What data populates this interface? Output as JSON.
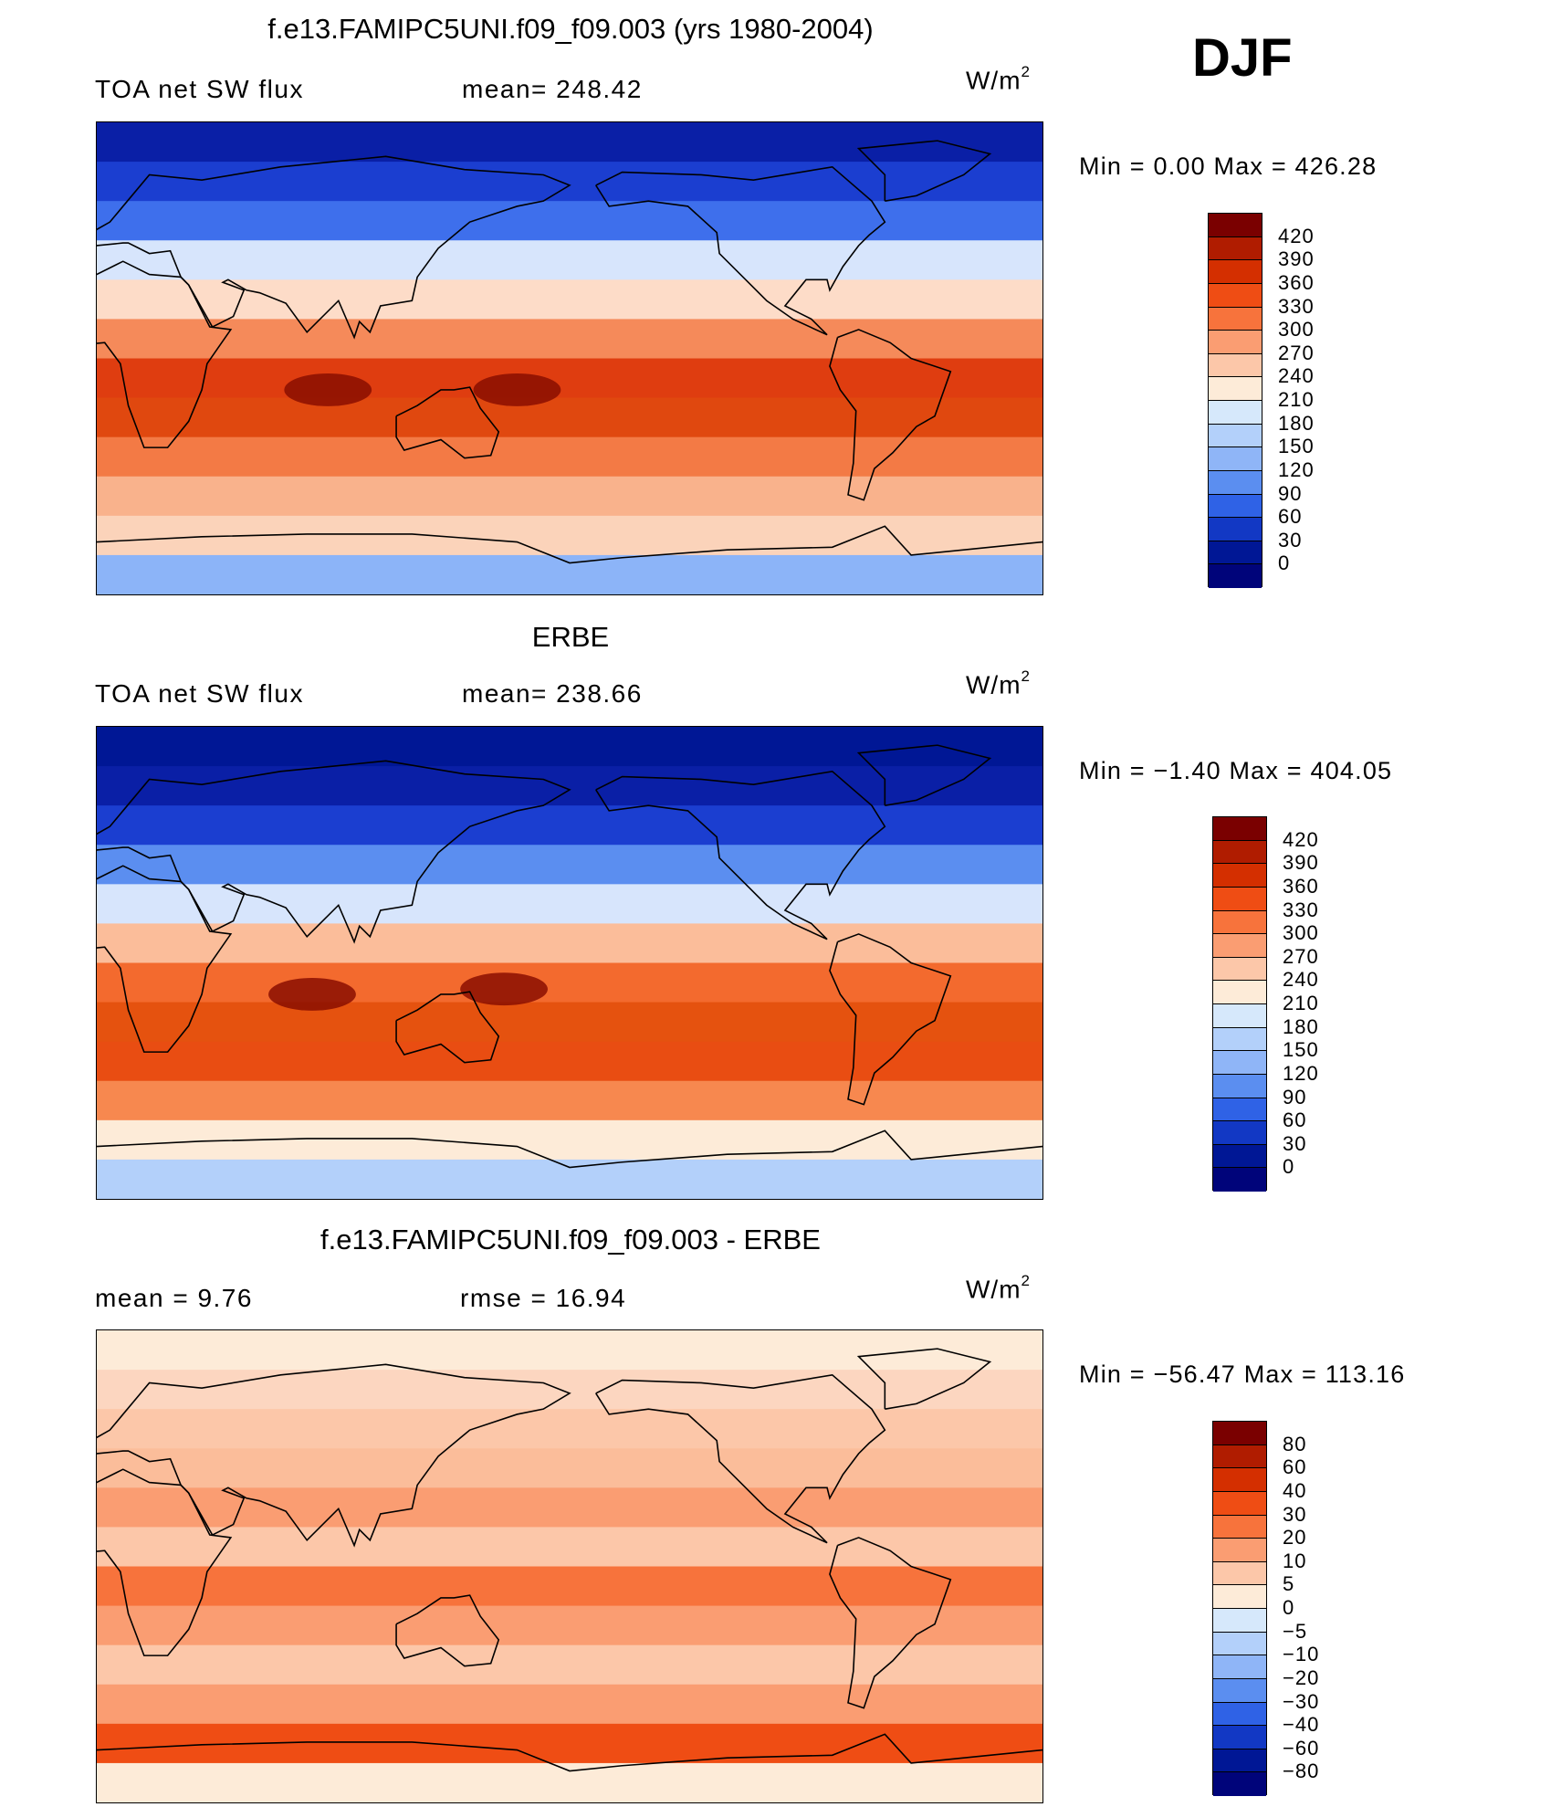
{
  "season": "DJF",
  "units_text": "W/m",
  "units_sup": "2",
  "panels": [
    {
      "title": "f.e13.FAMIPC5UNI.f09_f09.003 (yrs 1980-2004)",
      "left_label": "TOA net SW flux",
      "right_label": "mean= 248.42",
      "minmax": "Min =    0.00  Max  =  426.28",
      "colorbar": {
        "labels": [
          "420",
          "390",
          "360",
          "330",
          "300",
          "270",
          "240",
          "210",
          "180",
          "150",
          "120",
          "90",
          "60",
          "30",
          "0"
        ],
        "colors": [
          "#7a0000",
          "#b01c00",
          "#d42f00",
          "#ef4d14",
          "#f7733c",
          "#fa9d72",
          "#fcc7a9",
          "#fdebd8",
          "#d6e8fb",
          "#b3d0fa",
          "#8fb5f7",
          "#5b8ef0",
          "#2f62e6",
          "#1238c4",
          "#001795",
          "#00047a"
        ]
      },
      "map": {
        "bands": [
          "#0a1fa6",
          "#1b3ed0",
          "#3e6fec",
          "#d7e5fc",
          "#fddcc8",
          "#f58a5a",
          "#df3d10",
          "#e0480f",
          "#f37a45",
          "#f9b28c",
          "#fbd3ba",
          "#8cb4f8"
        ],
        "hot_spots": [
          {
            "lon": 160,
            "lat": -12
          },
          {
            "lon": 88,
            "lat": -12
          }
        ]
      }
    },
    {
      "title": "ERBE",
      "left_label": "TOA net SW flux",
      "right_label": "mean= 238.66",
      "minmax": "Min =  −1.40  Max  =  404.05",
      "colorbar": {
        "labels": [
          "420",
          "390",
          "360",
          "330",
          "300",
          "270",
          "240",
          "210",
          "180",
          "150",
          "120",
          "90",
          "60",
          "30",
          "0"
        ],
        "colors": [
          "#7a0000",
          "#b01c00",
          "#d42f00",
          "#ef4d14",
          "#f7733c",
          "#fa9d72",
          "#fcc7a9",
          "#fdebd8",
          "#d6e8fb",
          "#b3d0fa",
          "#8fb5f7",
          "#5b8ef0",
          "#2f62e6",
          "#1238c4",
          "#001795",
          "#00047a"
        ]
      },
      "map": {
        "bands": [
          "#001795",
          "#0a1fa6",
          "#1b3ed0",
          "#5b8ef0",
          "#d7e5fc",
          "#fbbd9a",
          "#f36a2e",
          "#e5520f",
          "#e94d12",
          "#f7884f",
          "#fdebd8",
          "#b3d0fa"
        ],
        "hot_spots": [
          {
            "lon": 155,
            "lat": -10
          },
          {
            "lon": 82,
            "lat": -12
          }
        ]
      }
    },
    {
      "title": "f.e13.FAMIPC5UNI.f09_f09.003 - ERBE",
      "left_label": "mean =     9.76",
      "right_label": "rmse =    16.94",
      "minmax": "Min  =  −56.47  Max  =  113.16",
      "colorbar": {
        "labels": [
          "80",
          "60",
          "40",
          "30",
          "20",
          "10",
          "5",
          "0",
          "−5",
          "−10",
          "−20",
          "−30",
          "−40",
          "−60",
          "−80"
        ],
        "colors": [
          "#7a0000",
          "#b01c00",
          "#d42f00",
          "#ef4d14",
          "#f7733c",
          "#fa9d72",
          "#fcc7a9",
          "#fdebd8",
          "#d6e8fb",
          "#b3d0fa",
          "#8fb5f7",
          "#5b8ef0",
          "#2f62e6",
          "#1238c4",
          "#001795",
          "#00047a"
        ]
      },
      "map": {
        "bands": [
          "#fdebd8",
          "#fcd6c0",
          "#fcc7a9",
          "#fbbd9a",
          "#fa9d72",
          "#fcc7a9",
          "#f7733c",
          "#fa9d72",
          "#fcc7a9",
          "#fa9d72",
          "#ef4d14",
          "#fdebd8"
        ],
        "hot_spots": []
      }
    }
  ]
}
